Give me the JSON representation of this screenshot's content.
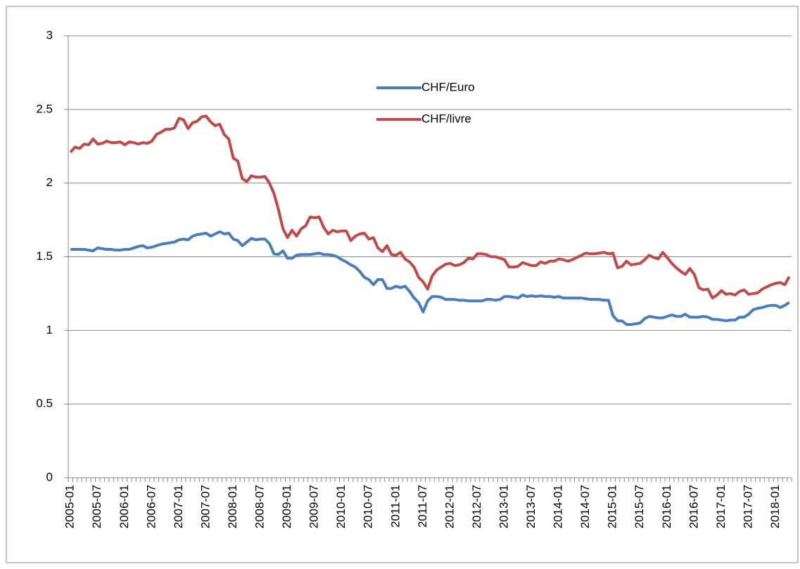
{
  "chart_data": {
    "type": "line",
    "categories": [
      "2005-01",
      null,
      null,
      null,
      null,
      null,
      "2005-07",
      null,
      null,
      null,
      null,
      null,
      "2006-01",
      null,
      null,
      null,
      null,
      null,
      "2006-07",
      null,
      null,
      null,
      null,
      null,
      "2007-01",
      null,
      null,
      null,
      null,
      null,
      "2007-07",
      null,
      null,
      null,
      null,
      null,
      "2008-01",
      null,
      null,
      null,
      null,
      null,
      "2008-07",
      null,
      null,
      null,
      null,
      null,
      "2009-01",
      null,
      null,
      null,
      null,
      null,
      "2009-07",
      null,
      null,
      null,
      null,
      null,
      "2010-01",
      null,
      null,
      null,
      null,
      null,
      "2010-07",
      null,
      null,
      null,
      null,
      null,
      "2011-01",
      null,
      null,
      null,
      null,
      null,
      "2011-07",
      null,
      null,
      null,
      null,
      null,
      "2012-01",
      null,
      null,
      null,
      null,
      null,
      "2012-07",
      null,
      null,
      null,
      null,
      null,
      "2013-01",
      null,
      null,
      null,
      null,
      null,
      "2013-07",
      null,
      null,
      null,
      null,
      null,
      "2014-01",
      null,
      null,
      null,
      null,
      null,
      "2014-07",
      null,
      null,
      null,
      null,
      null,
      "2015-01",
      null,
      null,
      null,
      null,
      null,
      "2015-07",
      null,
      null,
      null,
      null,
      null,
      "2016-01",
      null,
      null,
      null,
      null,
      null,
      "2016-07",
      null,
      null,
      null,
      null,
      null,
      "2017-01",
      null,
      null,
      null,
      null,
      null,
      "2017-07",
      null,
      null,
      null,
      null,
      null,
      "2018-01",
      null,
      null,
      null
    ],
    "series": [
      {
        "name": "CHF/Euro",
        "color": "#4a7ebb",
        "values": [
          1.55,
          1.55,
          1.55,
          1.55,
          1.545,
          1.54,
          1.56,
          1.555,
          1.55,
          1.55,
          1.545,
          1.545,
          1.55,
          1.55,
          1.56,
          1.57,
          1.575,
          1.56,
          1.565,
          1.575,
          1.585,
          1.59,
          1.595,
          1.6,
          1.615,
          1.62,
          1.615,
          1.64,
          1.65,
          1.655,
          1.66,
          1.64,
          1.655,
          1.67,
          1.655,
          1.66,
          1.62,
          1.61,
          1.575,
          1.6,
          1.625,
          1.615,
          1.62,
          1.62,
          1.59,
          1.52,
          1.515,
          1.54,
          1.49,
          1.49,
          1.51,
          1.515,
          1.515,
          1.515,
          1.52,
          1.525,
          1.515,
          1.515,
          1.51,
          1.5,
          1.48,
          1.465,
          1.445,
          1.43,
          1.4,
          1.36,
          1.345,
          1.31,
          1.345,
          1.345,
          1.285,
          1.285,
          1.3,
          1.29,
          1.3,
          1.265,
          1.22,
          1.19,
          1.125,
          1.2,
          1.23,
          1.23,
          1.225,
          1.21,
          1.21,
          1.21,
          1.205,
          1.205,
          1.2,
          1.2,
          1.2,
          1.2,
          1.21,
          1.21,
          1.205,
          1.21,
          1.23,
          1.23,
          1.225,
          1.22,
          1.24,
          1.23,
          1.235,
          1.23,
          1.235,
          1.23,
          1.23,
          1.225,
          1.23,
          1.22,
          1.22,
          1.22,
          1.22,
          1.22,
          1.215,
          1.21,
          1.21,
          1.21,
          1.205,
          1.205,
          1.1,
          1.065,
          1.065,
          1.04,
          1.04,
          1.045,
          1.05,
          1.08,
          1.095,
          1.09,
          1.085,
          1.085,
          1.095,
          1.105,
          1.095,
          1.095,
          1.11,
          1.09,
          1.09,
          1.09,
          1.095,
          1.09,
          1.075,
          1.075,
          1.07,
          1.065,
          1.07,
          1.07,
          1.09,
          1.09,
          1.11,
          1.14,
          1.15,
          1.155,
          1.165,
          1.17,
          1.17,
          1.155,
          1.17,
          1.19
        ]
      },
      {
        "name": "CHF/livre",
        "color": "#be4b48",
        "values": [
          2.21,
          2.245,
          2.235,
          2.265,
          2.26,
          2.3,
          2.265,
          2.27,
          2.285,
          2.275,
          2.275,
          2.28,
          2.26,
          2.28,
          2.275,
          2.265,
          2.275,
          2.27,
          2.285,
          2.33,
          2.345,
          2.365,
          2.365,
          2.375,
          2.44,
          2.43,
          2.37,
          2.41,
          2.42,
          2.45,
          2.455,
          2.415,
          2.39,
          2.4,
          2.33,
          2.3,
          2.17,
          2.15,
          2.03,
          2.01,
          2.05,
          2.04,
          2.04,
          2.045,
          2.0,
          1.93,
          1.82,
          1.69,
          1.63,
          1.68,
          1.64,
          1.69,
          1.71,
          1.77,
          1.765,
          1.77,
          1.7,
          1.655,
          1.68,
          1.67,
          1.675,
          1.675,
          1.61,
          1.64,
          1.655,
          1.66,
          1.62,
          1.63,
          1.56,
          1.535,
          1.575,
          1.515,
          1.51,
          1.53,
          1.485,
          1.465,
          1.43,
          1.36,
          1.33,
          1.28,
          1.37,
          1.41,
          1.43,
          1.45,
          1.455,
          1.44,
          1.445,
          1.46,
          1.49,
          1.485,
          1.52,
          1.52,
          1.515,
          1.5,
          1.5,
          1.49,
          1.48,
          1.43,
          1.43,
          1.435,
          1.46,
          1.45,
          1.44,
          1.44,
          1.465,
          1.455,
          1.47,
          1.47,
          1.485,
          1.48,
          1.47,
          1.48,
          1.495,
          1.51,
          1.525,
          1.52,
          1.52,
          1.525,
          1.53,
          1.52,
          1.525,
          1.425,
          1.435,
          1.47,
          1.445,
          1.45,
          1.455,
          1.48,
          1.51,
          1.495,
          1.485,
          1.53,
          1.495,
          1.455,
          1.425,
          1.4,
          1.38,
          1.42,
          1.38,
          1.29,
          1.275,
          1.28,
          1.22,
          1.24,
          1.27,
          1.245,
          1.25,
          1.24,
          1.265,
          1.275,
          1.245,
          1.25,
          1.255,
          1.28,
          1.295,
          1.31,
          1.32,
          1.325,
          1.31,
          1.365
        ]
      }
    ],
    "ylim": [
      0,
      3
    ],
    "yticks": [
      0,
      0.5,
      1,
      1.5,
      2,
      2.5,
      3
    ],
    "grid": true,
    "legend": "upper center"
  }
}
